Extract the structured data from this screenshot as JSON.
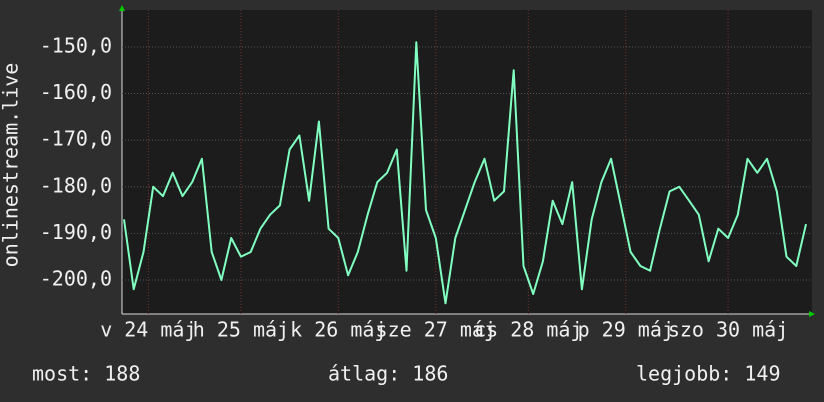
{
  "chart_data": {
    "type": "line",
    "y_label": "onlinestream.live",
    "x": [
      0.0,
      0.1,
      0.2,
      0.3,
      0.4,
      0.5,
      0.6,
      0.7,
      0.8,
      0.9,
      1.0,
      1.1,
      1.2,
      1.3,
      1.4,
      1.5,
      1.6,
      1.7,
      1.8,
      1.9,
      2.0,
      2.1,
      2.2,
      2.3,
      2.4,
      2.5,
      2.6,
      2.7,
      2.8,
      2.9,
      3.0,
      3.1,
      3.2,
      3.3,
      3.4,
      3.5,
      3.6,
      3.7,
      3.8,
      3.9,
      4.0,
      4.1,
      4.2,
      4.3,
      4.4,
      4.5,
      4.6,
      4.7,
      4.8,
      4.9,
      5.0,
      5.1,
      5.2,
      5.3,
      5.4,
      5.5,
      5.6,
      5.7,
      5.8,
      5.9,
      6.0,
      6.1,
      6.2,
      6.3,
      6.4,
      6.5,
      6.6,
      6.7,
      6.8,
      6.9,
      7.0
    ],
    "series": [
      {
        "name": "onlinestream.live",
        "color": "#80ffc0",
        "values": [
          -187,
          -202,
          -194,
          -180,
          -182,
          -177,
          -182,
          -179,
          -174,
          -194,
          -200,
          -191,
          -195,
          -194,
          -189,
          -186,
          -184,
          -172,
          -169,
          -183,
          -166,
          -189,
          -191,
          -199,
          -194,
          -186,
          -179,
          -177,
          -172,
          -198,
          -149,
          -185,
          -191,
          -205,
          -191,
          -185,
          -179,
          -174,
          -183,
          -181,
          -155,
          -197,
          -203,
          -196,
          -183,
          -188,
          -179,
          -202,
          -187,
          -179,
          -174,
          -184,
          -194,
          -197,
          -198,
          -189,
          -181,
          -180,
          -183,
          -186,
          -196,
          -189,
          -191,
          -186,
          -174,
          -177,
          -174,
          -181,
          -195,
          -197,
          -188
        ]
      }
    ],
    "xlim": [
      0,
      7
    ],
    "xticks": [
      {
        "value": 0.25,
        "label": "v 24 máj"
      },
      {
        "value": 1.2,
        "label": "h 25 máj"
      },
      {
        "value": 2.2,
        "label": "k 26 máj"
      },
      {
        "value": 3.2,
        "label": "sze 27 máj"
      },
      {
        "value": 4.15,
        "label": "cs 28 máj"
      },
      {
        "value": 5.15,
        "label": "p 29 máj"
      },
      {
        "value": 6.2,
        "label": "szo 30 máj"
      }
    ],
    "ylim": [
      -207.3,
      -142.5
    ],
    "yticks": [
      {
        "value": -200,
        "label": "-200,0"
      },
      {
        "value": -190,
        "label": "-190,0"
      },
      {
        "value": -180,
        "label": "-180,0"
      },
      {
        "value": -170,
        "label": "-170,0"
      },
      {
        "value": -160,
        "label": "-160,0"
      },
      {
        "value": -150,
        "label": "-150,0"
      }
    ],
    "grid": true,
    "footer": [
      "most: 188",
      "átlag: 186",
      "legjobb: 149"
    ]
  }
}
